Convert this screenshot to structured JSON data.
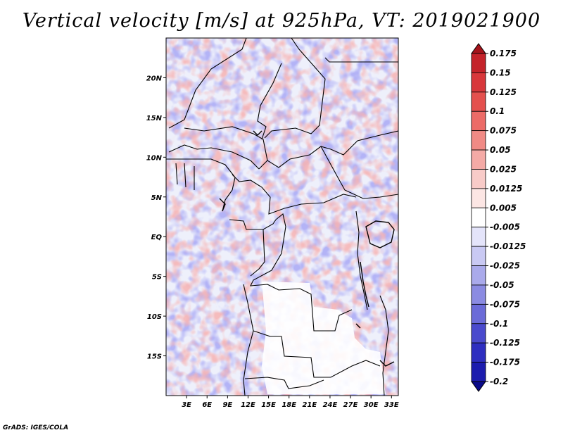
{
  "title": "Vertical velocity [m/s] at 925hPa, VT: 2019021900",
  "footer": "GrADS: IGES/COLA",
  "map": {
    "lon_range": [
      0,
      34
    ],
    "lat_range": [
      -20,
      25
    ],
    "x_ticks": [
      3,
      6,
      9,
      12,
      15,
      18,
      21,
      24,
      27,
      30,
      33
    ],
    "x_tick_labels": [
      "3E",
      "6E",
      "9E",
      "12E",
      "15E",
      "18E",
      "21E",
      "24E",
      "27E",
      "30E",
      "33E"
    ],
    "y_ticks": [
      20,
      15,
      10,
      5,
      0,
      -5,
      -10,
      -15
    ],
    "y_tick_labels": [
      "20N",
      "15N",
      "10N",
      "5N",
      "EQ",
      "5S",
      "10S",
      "15S"
    ]
  },
  "colorbar": {
    "labels": [
      "0.175",
      "0.15",
      "0.125",
      "0.1",
      "0.075",
      "0.05",
      "0.025",
      "0.0125",
      "0.005",
      "-0.005",
      "-0.0125",
      "-0.025",
      "-0.05",
      "-0.075",
      "-0.1",
      "-0.125",
      "-0.175",
      "-0.2"
    ],
    "colors": [
      "#a5141b",
      "#c4232a",
      "#d8373b",
      "#e4504e",
      "#ec6b67",
      "#f08a85",
      "#f4aaa6",
      "#f8cbc8",
      "#fce6e4",
      "#ffffff",
      "#e4e4fa",
      "#c9c9f3",
      "#aaaaeb",
      "#8b8be2",
      "#6b6bd8",
      "#4a4acd",
      "#2e2ec0",
      "#1c1cae",
      "#0a0a8a"
    ]
  }
}
